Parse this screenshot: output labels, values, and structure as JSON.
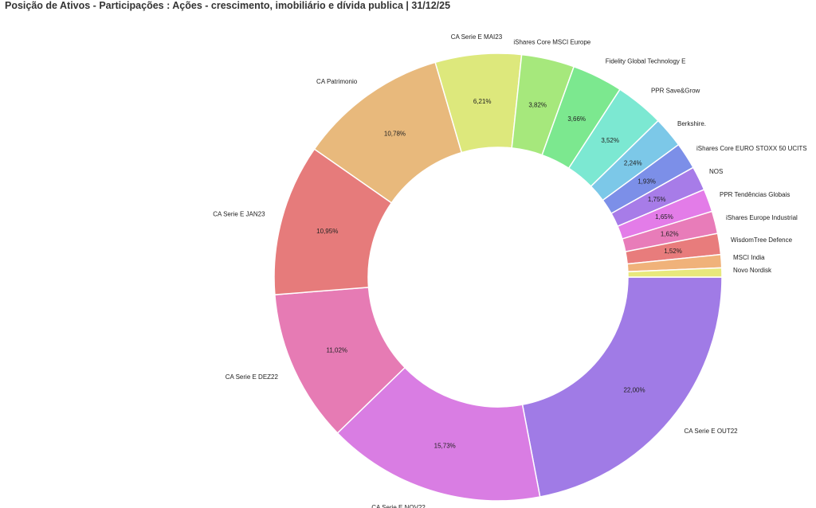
{
  "title": "Posição de Ativos - Participações : Ações - crescimento, imobiliário e dívida publica | 31/12/25",
  "chart_data": {
    "type": "pie",
    "subtype": "donut",
    "title": "Posição de Ativos - Participações : Ações - crescimento, imobiliário e dívida publica | 31/12/25",
    "start_angle_deg": 90,
    "direction": "clockwise",
    "slices": [
      {
        "label": "CA Serie E OUT22",
        "value": 22.0,
        "value_label": "22,00%",
        "color": "#a07be6"
      },
      {
        "label": "CA Serie E NOV22",
        "value": 15.73,
        "value_label": "15,73%",
        "color": "#d97de3"
      },
      {
        "label": "CA Serie E DEZ22",
        "value": 11.02,
        "value_label": "11,02%",
        "color": "#e67bb4"
      },
      {
        "label": "CA Serie E JAN23",
        "value": 10.95,
        "value_label": "10,95%",
        "color": "#e67b7b"
      },
      {
        "label": "CA Patrimonio",
        "value": 10.78,
        "value_label": "10,78%",
        "color": "#e8b97c"
      },
      {
        "label": "CA Serie E MAI23",
        "value": 6.21,
        "value_label": "6,21%",
        "color": "#dde87c"
      },
      {
        "label": "iShares Core MSCI Europe",
        "value": 3.82,
        "value_label": "3,82%",
        "color": "#a6e87c"
      },
      {
        "label": "Fidelity Global Technology E",
        "value": 3.66,
        "value_label": "3,66%",
        "color": "#7ce88f"
      },
      {
        "label": "PPR Save&Grow",
        "value": 3.52,
        "value_label": "3,52%",
        "color": "#7ce8d2"
      },
      {
        "label": "Berkshire.",
        "value": 2.24,
        "value_label": "2,24%",
        "color": "#7cc8e8"
      },
      {
        "label": "iShares Core EURO STOXX 50 UCITS",
        "value": 1.93,
        "value_label": "1,93%",
        "color": "#7c8fe8"
      },
      {
        "label": "NOS",
        "value": 1.75,
        "value_label": "1,75%",
        "color": "#a77ce8"
      },
      {
        "label": "PPR Tendências Globais",
        "value": 1.65,
        "value_label": "1,65%",
        "color": "#e37ce8"
      },
      {
        "label": "iShares Europe Industrial",
        "value": 1.62,
        "value_label": "1,62%",
        "color": "#e87cb9"
      },
      {
        "label": "WisdomTree Defence",
        "value": 1.52,
        "value_label": "1,52%",
        "color": "#e87c7c"
      },
      {
        "label": "MSCI India",
        "value": 0.95,
        "value_label": "",
        "color": "#f0b27a"
      },
      {
        "label": "Novo Nordisk",
        "value": 0.66,
        "value_label": "",
        "color": "#e8e87c"
      }
    ]
  }
}
